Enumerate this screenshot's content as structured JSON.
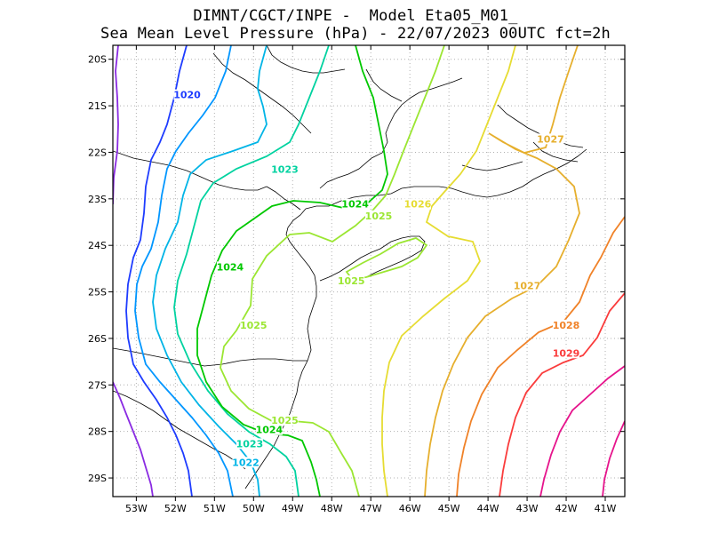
{
  "title": {
    "line1": "DIMNT/CGCT/INPE -  Model Eta05_M01_",
    "line2": "Sea Mean Level Pressure (hPa) - 22/07/2023 00UTC fct=2h"
  },
  "chart_data": {
    "type": "contour",
    "variable": "Sea Mean Level Pressure (hPa)",
    "x_ticks": [
      "53W",
      "52W",
      "51W",
      "50W",
      "49W",
      "48W",
      "47W",
      "46W",
      "45W",
      "44W",
      "43W",
      "42W",
      "41W"
    ],
    "y_ticks": [
      "20S",
      "21S",
      "22S",
      "23S",
      "24S",
      "25S",
      "26S",
      "27S",
      "28S",
      "29S"
    ],
    "xlim": [
      -53.6,
      -40.5
    ],
    "ylim": [
      -29.4,
      -19.7
    ],
    "grid": true,
    "contour_labels": [
      {
        "value": "1020",
        "lon": -51.7,
        "lat": -20.8,
        "color": "#1e3cff"
      },
      {
        "value": "1022",
        "lon": -50.2,
        "lat": -28.7,
        "color": "#00b4e6"
      },
      {
        "value": "1023",
        "lon": -49.2,
        "lat": -22.4,
        "color": "#00d2a0"
      },
      {
        "value": "1023",
        "lon": -50.1,
        "lat": -28.3,
        "color": "#00d2a0"
      },
      {
        "value": "1024",
        "lon": -50.6,
        "lat": -24.5,
        "color": "#00c800"
      },
      {
        "value": "1024",
        "lon": -47.4,
        "lat": -23.15,
        "color": "#00c800"
      },
      {
        "value": "1024",
        "lon": -49.6,
        "lat": -28.0,
        "color": "#00c800"
      },
      {
        "value": "1025",
        "lon": -50.0,
        "lat": -25.75,
        "color": "#9be632"
      },
      {
        "value": "1025",
        "lon": -46.8,
        "lat": -23.4,
        "color": "#9be632"
      },
      {
        "value": "1025",
        "lon": -47.5,
        "lat": -24.8,
        "color": "#9be632"
      },
      {
        "value": "1025",
        "lon": -49.2,
        "lat": -27.8,
        "color": "#9be632"
      },
      {
        "value": "1026",
        "lon": -45.8,
        "lat": -23.15,
        "color": "#e6dc32"
      },
      {
        "value": "1027",
        "lon": -42.4,
        "lat": -21.75,
        "color": "#e6af2d"
      },
      {
        "value": "1027",
        "lon": -43.0,
        "lat": -24.9,
        "color": "#e6af2d"
      },
      {
        "value": "1028",
        "lon": -42.0,
        "lat": -25.75,
        "color": "#f08228"
      },
      {
        "value": "1029",
        "lon": -42.0,
        "lat": -26.35,
        "color": "#fa3c3c"
      }
    ]
  }
}
